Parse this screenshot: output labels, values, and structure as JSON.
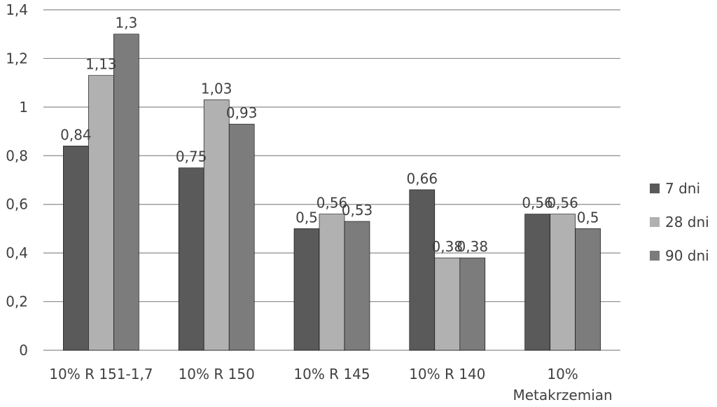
{
  "colors": {
    "series_7": "#5a5a5a",
    "series_28": "#b1b1b1",
    "series_90": "#7c7c7c"
  },
  "chart_data": {
    "type": "bar",
    "categories": [
      [
        "10% R 151-1,7"
      ],
      [
        "10% R 150"
      ],
      [
        "10% R 145"
      ],
      [
        "10% R 140"
      ],
      [
        "10%",
        "Metakrzemian"
      ]
    ],
    "series": [
      {
        "name": "7 dni",
        "values": [
          0.84,
          0.75,
          0.5,
          0.66,
          0.56
        ],
        "labels": [
          "0,84",
          "0,75",
          "0,5",
          "0,66",
          "0,56"
        ]
      },
      {
        "name": "28 dni",
        "values": [
          1.13,
          1.03,
          0.56,
          0.38,
          0.56
        ],
        "labels": [
          "1,13",
          "1,03",
          "0,56",
          "0,38",
          "0,56"
        ]
      },
      {
        "name": "90 dni",
        "values": [
          1.3,
          0.93,
          0.53,
          0.38,
          0.5
        ],
        "labels": [
          "1,3",
          "0,93",
          "0,53",
          "0,38",
          "0,5"
        ]
      }
    ],
    "ylim": [
      0,
      1.4
    ],
    "yticks": [
      0,
      0.2,
      0.4,
      0.6,
      0.8,
      1,
      1.2,
      1.4
    ],
    "ytick_labels": [
      "0",
      "0,2",
      "0,4",
      "0,6",
      "0,8",
      "1",
      "1,2",
      "1,4"
    ],
    "grid": true,
    "legend_position": "right"
  }
}
